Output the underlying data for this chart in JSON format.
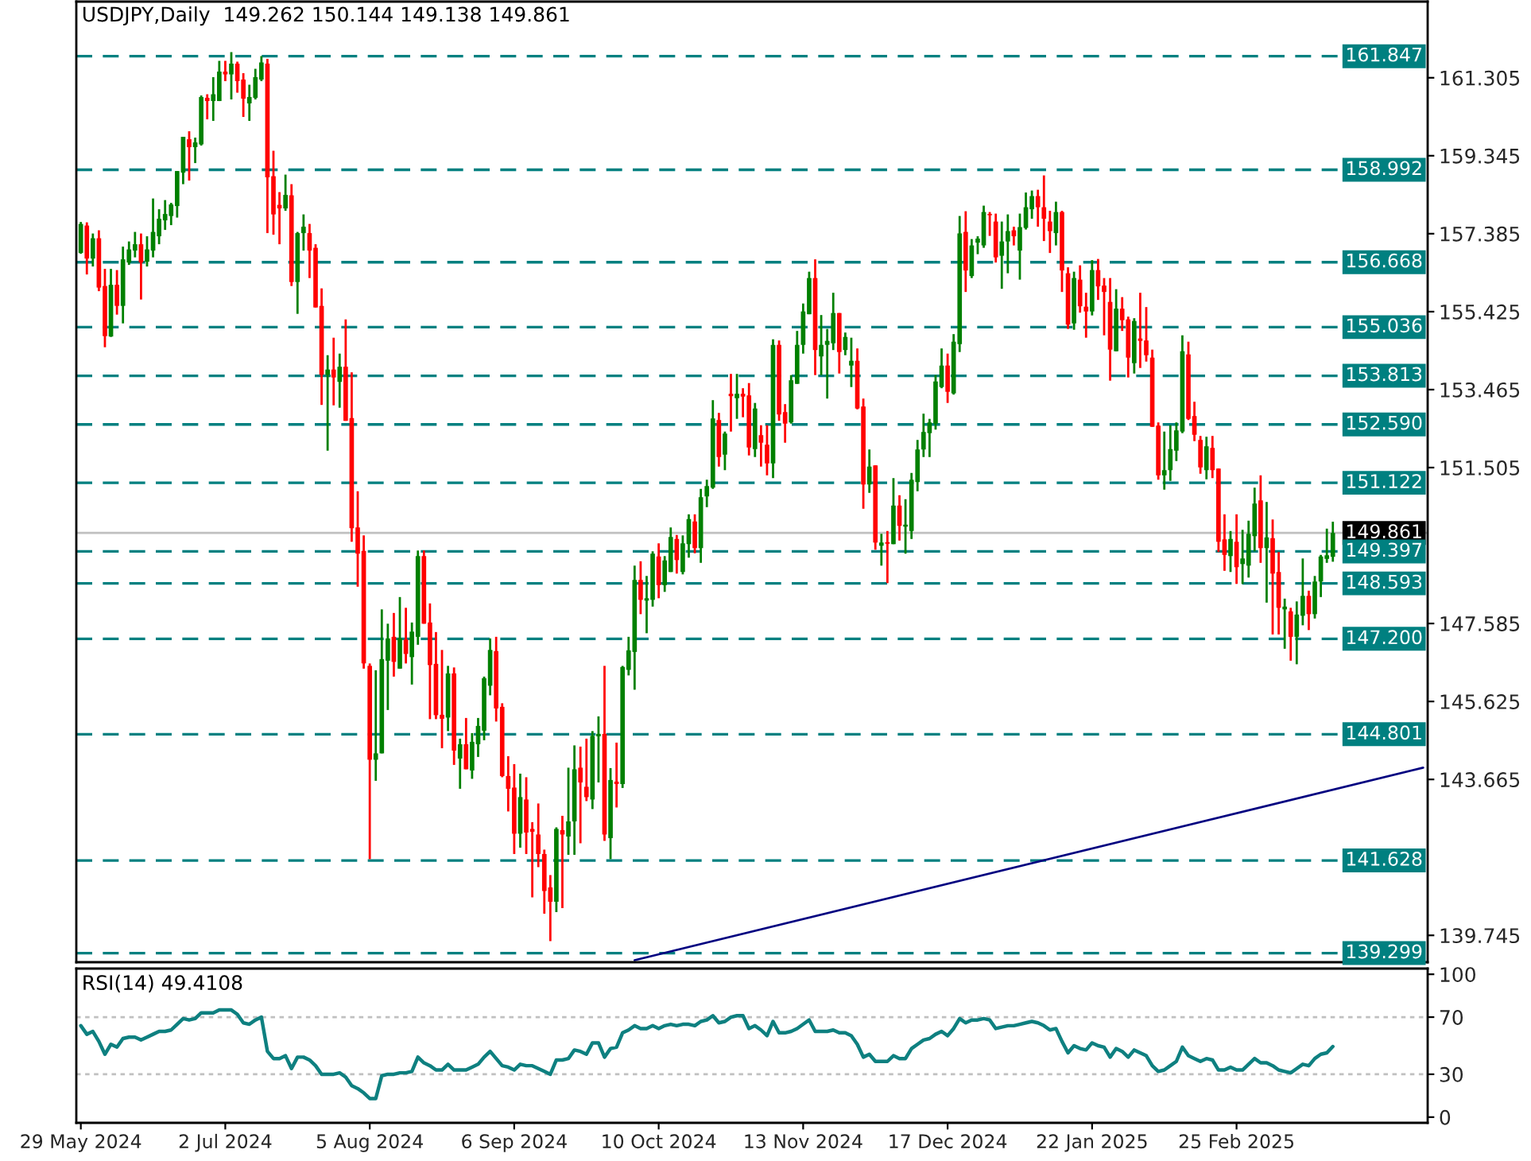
{
  "chart_data": [
    {
      "type": "candlestick",
      "title": "USDJPY,Daily  149.262 150.144 149.138 149.861",
      "categories": [
        null,
        null,
        null,
        null,
        null,
        null,
        null,
        null,
        null,
        null,
        null,
        null,
        null,
        null,
        null,
        null,
        null,
        null,
        null,
        null,
        null,
        null,
        null,
        null,
        null,
        null,
        null,
        null,
        null,
        null,
        null,
        null,
        null,
        null,
        null,
        null,
        null,
        null,
        null,
        null,
        null,
        null,
        null,
        null,
        null,
        null,
        null,
        null,
        null,
        null,
        null,
        null,
        null,
        null,
        null,
        null,
        null,
        null,
        null,
        null,
        null,
        null,
        null,
        null,
        null,
        null,
        null,
        null,
        null,
        null,
        null,
        null,
        null,
        null,
        null,
        null,
        null,
        null,
        null,
        null,
        null,
        null,
        null,
        null,
        null,
        null,
        null,
        null,
        null,
        null,
        null,
        null,
        null,
        null,
        null,
        null,
        null,
        null,
        null,
        null,
        null,
        null,
        null,
        null,
        null,
        null,
        null,
        null,
        null,
        null,
        null,
        null,
        null,
        null,
        null,
        null,
        null,
        null,
        null,
        null,
        null,
        null,
        null,
        null,
        null,
        null,
        null,
        null,
        null,
        null,
        null,
        null,
        null,
        null,
        null,
        null,
        null,
        null,
        null,
        null,
        null,
        null,
        null,
        null,
        null,
        null,
        null,
        null,
        null,
        null,
        null,
        null,
        null,
        null,
        null,
        null,
        null,
        null,
        null,
        null,
        null,
        null,
        null,
        null,
        null,
        null,
        null,
        null,
        null,
        null,
        null,
        null,
        null,
        null,
        null,
        null,
        null,
        null,
        null,
        null,
        null,
        null,
        null,
        null,
        null,
        null,
        null,
        null,
        null,
        null,
        null,
        null,
        null,
        null,
        null,
        null,
        null,
        null,
        null,
        null,
        null,
        null,
        null,
        null,
        null,
        null,
        null,
        null,
        null,
        null,
        null,
        null,
        null,
        null,
        null,
        null,
        null,
        null,
        null,
        null,
        null,
        null,
        null,
        null
      ],
      "ohlc": [
        [
          156.9,
          157.68,
          156.88,
          157.63
        ],
        [
          157.59,
          157.67,
          156.36,
          156.76
        ],
        [
          156.76,
          157.39,
          156.56,
          157.27
        ],
        [
          157.27,
          157.47,
          155.94,
          156.03
        ],
        [
          156.07,
          156.5,
          154.53,
          154.81
        ],
        [
          154.8,
          156.5,
          154.79,
          156.1
        ],
        [
          156.1,
          156.47,
          155.35,
          155.57
        ],
        [
          155.57,
          157.06,
          155.13,
          156.74
        ],
        [
          156.66,
          157.19,
          156.6,
          156.99
        ],
        [
          156.96,
          157.43,
          156.79,
          157.12
        ],
        [
          157.12,
          157.39,
          155.73,
          156.66
        ],
        [
          156.68,
          157.32,
          156.56,
          156.99
        ],
        [
          156.96,
          158.27,
          156.79,
          157.43
        ],
        [
          157.32,
          158.0,
          157.12,
          157.76
        ],
        [
          157.72,
          158.23,
          157.48,
          157.88
        ],
        [
          157.83,
          158.16,
          157.6,
          158.12
        ],
        [
          158.08,
          158.96,
          157.79,
          158.96
        ],
        [
          158.92,
          159.82,
          158.63,
          159.82
        ],
        [
          159.76,
          159.96,
          158.72,
          159.56
        ],
        [
          159.56,
          159.8,
          159.16,
          159.68
        ],
        [
          159.63,
          160.86,
          159.6,
          160.82
        ],
        [
          160.8,
          160.89,
          160.26,
          160.72
        ],
        [
          160.72,
          161.32,
          160.22,
          160.89
        ],
        [
          160.72,
          161.73,
          160.72,
          161.46
        ],
        [
          161.46,
          161.73,
          161.22,
          161.39
        ],
        [
          161.39,
          161.95,
          160.76,
          161.66
        ],
        [
          161.66,
          161.71,
          160.93,
          161.22
        ],
        [
          161.26,
          161.42,
          160.32,
          160.78
        ],
        [
          160.66,
          161.13,
          160.22,
          160.82
        ],
        [
          160.8,
          161.53,
          160.76,
          161.32
        ],
        [
          161.26,
          161.85,
          161.22,
          161.69
        ],
        [
          161.66,
          161.78,
          157.4,
          158.8
        ],
        [
          158.83,
          159.47,
          157.36,
          157.87
        ],
        [
          158.11,
          158.43,
          157.12,
          158.02
        ],
        [
          158.02,
          158.87,
          157.96,
          158.36
        ],
        [
          158.35,
          158.63,
          156.07,
          156.17
        ],
        [
          156.17,
          157.43,
          155.37,
          157.4
        ],
        [
          157.4,
          157.87,
          156.96,
          157.56
        ],
        [
          157.4,
          157.63,
          156.27,
          156.96
        ],
        [
          157.03,
          157.12,
          155.53,
          155.53
        ],
        [
          155.57,
          156.01,
          153.08,
          153.84
        ],
        [
          153.84,
          154.33,
          151.93,
          153.97
        ],
        [
          153.97,
          154.77,
          153.07,
          153.77
        ],
        [
          153.66,
          154.37,
          153.01,
          154.04
        ],
        [
          154.04,
          155.23,
          152.68,
          152.68
        ],
        [
          152.75,
          153.9,
          149.64,
          149.98
        ],
        [
          150.0,
          150.91,
          148.51,
          149.34
        ],
        [
          149.41,
          149.8,
          146.45,
          146.58
        ],
        [
          146.52,
          146.58,
          141.66,
          144.16
        ],
        [
          144.16,
          146.41,
          143.63,
          144.32
        ],
        [
          144.32,
          147.94,
          144.32,
          146.69
        ],
        [
          146.65,
          147.58,
          145.41,
          147.21
        ],
        [
          147.25,
          147.85,
          146.25,
          146.62
        ],
        [
          146.45,
          148.25,
          146.45,
          147.21
        ],
        [
          147.18,
          147.98,
          146.58,
          146.82
        ],
        [
          146.74,
          147.61,
          146.05,
          147.38
        ],
        [
          147.25,
          149.42,
          147.05,
          149.28
        ],
        [
          149.28,
          149.42,
          147.58,
          147.58
        ],
        [
          147.61,
          148.09,
          145.18,
          146.54
        ],
        [
          146.57,
          147.37,
          145.18,
          145.28
        ],
        [
          145.29,
          146.92,
          144.45,
          145.19
        ],
        [
          145.22,
          146.52,
          144.88,
          146.33
        ],
        [
          146.33,
          146.48,
          144.03,
          144.39
        ],
        [
          144.19,
          144.69,
          143.43,
          144.55
        ],
        [
          144.55,
          145.21,
          143.92,
          143.92
        ],
        [
          143.89,
          144.83,
          143.68,
          144.61
        ],
        [
          144.55,
          145.21,
          144.23,
          145.01
        ],
        [
          144.89,
          146.25,
          144.65,
          146.21
        ],
        [
          146.02,
          147.21,
          145.78,
          146.92
        ],
        [
          146.89,
          147.25,
          145.12,
          145.45
        ],
        [
          145.49,
          145.58,
          143.72,
          143.75
        ],
        [
          143.75,
          144.25,
          142.86,
          143.43
        ],
        [
          143.46,
          144.05,
          141.79,
          142.3
        ],
        [
          142.3,
          143.81,
          141.95,
          143.22
        ],
        [
          143.16,
          143.72,
          141.79,
          142.33
        ],
        [
          142.42,
          142.59,
          140.7,
          142.35
        ],
        [
          142.28,
          143.06,
          141.46,
          141.79
        ],
        [
          141.79,
          141.9,
          140.29,
          140.86
        ],
        [
          140.95,
          141.26,
          139.6,
          140.59
        ],
        [
          140.59,
          142.46,
          140.33,
          142.42
        ],
        [
          142.39,
          142.75,
          140.43,
          142.28
        ],
        [
          142.23,
          143.96,
          141.77,
          142.61
        ],
        [
          142.61,
          144.52,
          141.77,
          143.92
        ],
        [
          143.96,
          144.49,
          142.06,
          143.59
        ],
        [
          143.48,
          144.69,
          143.12,
          143.22
        ],
        [
          143.16,
          144.88,
          142.92,
          144.76
        ],
        [
          144.75,
          145.25,
          143.59,
          144.81
        ],
        [
          144.81,
          146.52,
          142.12,
          142.28
        ],
        [
          142.19,
          143.95,
          141.66,
          143.65
        ],
        [
          143.61,
          144.59,
          142.96,
          143.55
        ],
        [
          143.55,
          146.52,
          143.45,
          146.49
        ],
        [
          146.42,
          147.25,
          146.28,
          146.91
        ],
        [
          146.87,
          149.04,
          145.92,
          148.68
        ],
        [
          148.68,
          149.15,
          147.82,
          148.18
        ],
        [
          148.16,
          148.78,
          147.34,
          148.22
        ],
        [
          148.18,
          149.4,
          148.01,
          149.34
        ],
        [
          149.27,
          149.6,
          148.22,
          148.55
        ],
        [
          148.55,
          149.28,
          148.38,
          149.17
        ],
        [
          148.88,
          150.0,
          148.88,
          149.76
        ],
        [
          149.71,
          149.81,
          148.84,
          149.18
        ],
        [
          148.88,
          149.8,
          148.82,
          149.6
        ],
        [
          149.58,
          150.33,
          149.24,
          150.21
        ],
        [
          150.15,
          150.33,
          149.35,
          149.48
        ],
        [
          149.48,
          150.97,
          149.11,
          150.76
        ],
        [
          150.78,
          151.2,
          150.51,
          151.04
        ],
        [
          151.0,
          153.2,
          150.97,
          152.74
        ],
        [
          152.7,
          152.88,
          151.53,
          151.77
        ],
        [
          151.83,
          152.41,
          151.44,
          152.36
        ],
        [
          153.36,
          153.86,
          152.41,
          153.3
        ],
        [
          153.25,
          153.86,
          152.73,
          153.36
        ],
        [
          153.36,
          153.5,
          152.77,
          153.29
        ],
        [
          153.32,
          153.63,
          151.81,
          152.01
        ],
        [
          151.97,
          153.13,
          151.77,
          152.99
        ],
        [
          152.32,
          152.57,
          151.53,
          152.13
        ],
        [
          152.08,
          152.57,
          151.31,
          151.61
        ],
        [
          151.61,
          154.73,
          151.24,
          154.59
        ],
        [
          154.59,
          154.7,
          152.68,
          152.84
        ],
        [
          152.9,
          153.1,
          152.13,
          152.61
        ],
        [
          152.64,
          153.83,
          152.61,
          153.7
        ],
        [
          153.61,
          154.94,
          153.61,
          154.59
        ],
        [
          154.59,
          155.63,
          154.37,
          155.43
        ],
        [
          155.36,
          156.43,
          155.36,
          156.27
        ],
        [
          156.27,
          156.74,
          153.83,
          154.46
        ],
        [
          154.3,
          155.34,
          153.83,
          154.59
        ],
        [
          154.59,
          154.99,
          153.24,
          154.69
        ],
        [
          154.63,
          155.9,
          154.46,
          155.39
        ],
        [
          155.39,
          155.39,
          153.87,
          154.41
        ],
        [
          154.46,
          154.9,
          154.33,
          154.79
        ],
        [
          154.07,
          154.77,
          153.53,
          154.19
        ],
        [
          154.19,
          154.5,
          152.97,
          152.99
        ],
        [
          153.04,
          153.24,
          150.47,
          151.08
        ],
        [
          151.08,
          151.96,
          150.87,
          151.53
        ],
        [
          151.56,
          151.56,
          149.44,
          149.62
        ],
        [
          149.54,
          149.84,
          149.04,
          149.62
        ],
        [
          149.63,
          149.91,
          148.6,
          149.59
        ],
        [
          149.58,
          151.24,
          149.58,
          150.55
        ],
        [
          150.55,
          150.81,
          149.67,
          150.04
        ],
        [
          150.02,
          150.71,
          149.34,
          150.07
        ],
        [
          149.91,
          151.37,
          149.71,
          151.2
        ],
        [
          151.14,
          152.2,
          150.91,
          151.96
        ],
        [
          151.96,
          152.86,
          151.77,
          152.4
        ],
        [
          152.37,
          152.73,
          151.77,
          152.64
        ],
        [
          152.61,
          153.83,
          152.46,
          153.67
        ],
        [
          153.53,
          154.5,
          153.5,
          154.07
        ],
        [
          154.07,
          154.37,
          153.13,
          153.41
        ],
        [
          153.37,
          154.86,
          153.34,
          154.67
        ],
        [
          154.61,
          157.83,
          154.41,
          157.39
        ],
        [
          157.43,
          157.95,
          155.92,
          156.46
        ],
        [
          156.32,
          157.25,
          156.27,
          157.09
        ],
        [
          157.16,
          157.32,
          156.87,
          157.26
        ],
        [
          157.09,
          158.09,
          157.03,
          157.93
        ],
        [
          157.88,
          157.93,
          157.33,
          157.85
        ],
        [
          157.69,
          157.89,
          156.66,
          156.79
        ],
        [
          156.83,
          157.69,
          156.0,
          157.19
        ],
        [
          157.19,
          157.87,
          156.39,
          157.45
        ],
        [
          157.47,
          157.56,
          157.09,
          157.32
        ],
        [
          156.96,
          157.89,
          156.23,
          157.55
        ],
        [
          157.53,
          158.42,
          157.49,
          158.05
        ],
        [
          158.0,
          158.47,
          157.76,
          158.33
        ],
        [
          158.33,
          158.49,
          157.56,
          158.05
        ],
        [
          158.05,
          158.85,
          157.2,
          157.76
        ],
        [
          157.69,
          157.96,
          156.9,
          157.45
        ],
        [
          157.4,
          158.19,
          157.09,
          157.93
        ],
        [
          157.93,
          157.96,
          155.92,
          156.46
        ],
        [
          156.39,
          156.54,
          154.99,
          155.1
        ],
        [
          155.13,
          156.43,
          154.97,
          156.27
        ],
        [
          156.23,
          156.59,
          155.4,
          155.56
        ],
        [
          155.55,
          155.9,
          154.77,
          155.43
        ],
        [
          155.43,
          156.72,
          155.33,
          156.47
        ],
        [
          156.47,
          156.75,
          155.72,
          156.06
        ],
        [
          156.08,
          156.27,
          154.83,
          155.92
        ],
        [
          155.67,
          156.27,
          153.69,
          154.47
        ],
        [
          154.43,
          155.99,
          154.43,
          155.5
        ],
        [
          155.5,
          155.79,
          154.94,
          155.21
        ],
        [
          155.23,
          155.3,
          153.77,
          154.27
        ],
        [
          154.13,
          155.26,
          153.87,
          155.19
        ],
        [
          154.75,
          155.9,
          154.01,
          154.69
        ],
        [
          154.7,
          155.54,
          154.17,
          154.33
        ],
        [
          154.27,
          154.47,
          152.53,
          152.53
        ],
        [
          152.56,
          152.64,
          151.2,
          151.31
        ],
        [
          151.31,
          152.41,
          150.95,
          151.44
        ],
        [
          151.44,
          152.57,
          151.17,
          151.97
        ],
        [
          151.93,
          152.64,
          151.67,
          152.44
        ],
        [
          152.41,
          154.83,
          152.37,
          154.43
        ],
        [
          154.35,
          154.67,
          152.7,
          152.73
        ],
        [
          152.8,
          153.16,
          152.17,
          152.33
        ],
        [
          152.2,
          152.3,
          151.35,
          151.51
        ],
        [
          151.44,
          152.28,
          151.21,
          152.04
        ],
        [
          152.0,
          152.3,
          151.24,
          151.44
        ],
        [
          151.48,
          151.48,
          149.38,
          149.64
        ],
        [
          149.7,
          150.33,
          148.91,
          149.31
        ],
        [
          149.28,
          149.91,
          148.88,
          149.71
        ],
        [
          149.64,
          150.33,
          148.58,
          149.0
        ],
        [
          149.08,
          149.94,
          148.58,
          149.22
        ],
        [
          149.04,
          150.17,
          148.74,
          149.84
        ],
        [
          149.78,
          151.0,
          149.4,
          150.6
        ],
        [
          150.68,
          151.31,
          149.11,
          149.48
        ],
        [
          149.48,
          150.64,
          148.11,
          149.75
        ],
        [
          149.73,
          150.2,
          147.31,
          148.84
        ],
        [
          148.88,
          149.38,
          147.31,
          147.98
        ],
        [
          147.94,
          148.21,
          146.95,
          148.01
        ],
        [
          147.89,
          147.98,
          146.65,
          147.25
        ],
        [
          147.25,
          148.14,
          146.56,
          147.81
        ],
        [
          147.78,
          149.22,
          147.54,
          148.28
        ],
        [
          148.28,
          148.41,
          147.42,
          147.82
        ],
        [
          147.82,
          148.78,
          147.71,
          148.64
        ],
        [
          148.64,
          149.31,
          148.25,
          149.27
        ],
        [
          149.21,
          149.97,
          149.11,
          149.3
        ],
        [
          149.262,
          150.144,
          149.138,
          149.861
        ],
        null,
        null,
        null,
        null,
        null,
        null,
        null,
        null,
        null,
        null,
        null,
        null,
        null,
        null,
        null
      ],
      "series": [
        {
          "type": "line",
          "color": "#000080",
          "values": [
            null,
            null,
            null,
            null,
            null,
            null,
            null,
            null,
            null,
            null,
            null,
            null,
            null,
            null,
            null,
            null,
            null,
            null,
            null,
            null,
            null,
            null,
            null,
            null,
            null,
            null,
            null,
            null,
            null,
            null,
            null,
            null,
            null,
            null,
            null,
            null,
            null,
            null,
            null,
            null,
            null,
            null,
            null,
            null,
            null,
            null,
            null,
            null,
            null,
            null,
            null,
            null,
            null,
            null,
            null,
            null,
            null,
            null,
            null,
            null,
            null,
            null,
            null,
            null,
            null,
            null,
            null,
            null,
            null,
            null,
            null,
            null,
            null,
            null,
            null,
            null,
            null,
            null,
            null,
            null,
            null,
            null,
            null,
            null,
            null,
            null,
            null,
            null,
            null,
            null,
            null,
            null,
            139.12,
            null,
            null,
            null,
            null,
            null,
            null,
            null,
            null,
            null,
            null,
            null,
            null,
            null,
            null,
            null,
            null,
            null,
            null,
            null,
            null,
            null,
            null,
            null,
            null,
            null,
            null,
            null,
            null,
            null,
            null,
            null,
            null,
            null,
            null,
            null,
            null,
            null,
            null,
            null,
            null,
            null,
            null,
            null,
            null,
            null,
            null,
            null,
            null,
            null,
            null,
            null,
            null,
            null,
            null,
            null,
            null,
            null,
            null,
            null,
            null,
            null,
            null,
            null,
            null,
            null,
            null,
            null,
            null,
            null,
            null,
            null,
            null,
            null,
            null,
            null,
            null,
            null,
            null,
            null,
            null,
            null,
            null,
            null,
            null,
            null,
            null,
            null,
            null,
            null,
            null,
            null,
            null,
            null,
            null,
            null,
            null,
            null,
            null,
            null,
            null,
            null,
            null,
            null,
            null,
            null,
            null,
            null,
            null,
            null,
            null,
            null,
            null,
            null,
            null,
            null,
            null,
            null,
            null,
            null,
            null,
            null,
            null,
            null,
            null,
            null,
            null,
            null,
            null,
            null,
            null,
            143.96
          ]
        }
      ],
      "ylim": [
        139.07,
        163.22
      ],
      "yticks": [
        139.745,
        143.665,
        145.625,
        147.585,
        151.505,
        153.465,
        155.425,
        157.385,
        159.345,
        161.305
      ],
      "ref_lines": [
        {
          "axis": "y",
          "value": 161.847,
          "label": "161.847",
          "color": "#008080",
          "line_style": "dashed"
        },
        {
          "axis": "y",
          "value": 158.992,
          "label": "158.992",
          "color": "#008080",
          "line_style": "dashed"
        },
        {
          "axis": "y",
          "value": 156.668,
          "label": "156.668",
          "color": "#008080",
          "line_style": "dashed"
        },
        {
          "axis": "y",
          "value": 155.036,
          "label": "155.036",
          "color": "#008080",
          "line_style": "dashed"
        },
        {
          "axis": "y",
          "value": 153.813,
          "label": "153.813",
          "color": "#008080",
          "line_style": "dashed"
        },
        {
          "axis": "y",
          "value": 152.59,
          "label": "152.590",
          "color": "#008080",
          "line_style": "dashed"
        },
        {
          "axis": "y",
          "value": 151.122,
          "label": "151.122",
          "color": "#008080",
          "line_style": "dashed"
        },
        {
          "axis": "y",
          "value": 149.861,
          "label": "149.861",
          "color": "#c0c0c0",
          "line_style": "solid"
        },
        {
          "axis": "y",
          "value": 149.397,
          "label": "149.397",
          "color": "#008080",
          "line_style": "dashed"
        },
        {
          "axis": "y",
          "value": 148.593,
          "label": "148.593",
          "color": "#008080",
          "line_style": "dashed"
        },
        {
          "axis": "y",
          "value": 147.2,
          "label": "147.200",
          "color": "#008080",
          "line_style": "dashed"
        },
        {
          "axis": "y",
          "value": 144.801,
          "label": "144.801",
          "color": "#008080",
          "line_style": "dashed"
        },
        {
          "axis": "y",
          "value": 141.628,
          "label": "141.628",
          "color": "#008080",
          "line_style": "dashed"
        },
        {
          "axis": "y",
          "value": 139.299,
          "label": "139.299",
          "color": "#008080",
          "line_style": "dashed"
        }
      ],
      "grid": false,
      "legend": false,
      "tick_labels": "y"
    },
    {
      "type": "line",
      "title": "RSI(14) 49.4108",
      "categories": [
        "29 May 2024",
        null,
        null,
        null,
        null,
        null,
        null,
        null,
        null,
        null,
        null,
        null,
        null,
        null,
        null,
        null,
        null,
        null,
        null,
        null,
        null,
        null,
        null,
        null,
        "2 Jul 2024",
        null,
        null,
        null,
        null,
        null,
        null,
        null,
        null,
        null,
        null,
        null,
        null,
        null,
        null,
        null,
        null,
        null,
        null,
        null,
        null,
        null,
        null,
        null,
        "5 Aug 2024",
        null,
        null,
        null,
        null,
        null,
        null,
        null,
        null,
        null,
        null,
        null,
        null,
        null,
        null,
        null,
        null,
        null,
        null,
        null,
        null,
        null,
        null,
        null,
        "6 Sep 2024",
        null,
        null,
        null,
        null,
        null,
        null,
        null,
        null,
        null,
        null,
        null,
        null,
        null,
        null,
        null,
        null,
        null,
        null,
        null,
        null,
        null,
        null,
        null,
        "10 Oct 2024",
        null,
        null,
        null,
        null,
        null,
        null,
        null,
        null,
        null,
        null,
        null,
        null,
        null,
        null,
        null,
        null,
        null,
        null,
        null,
        null,
        null,
        null,
        null,
        "13 Nov 2024",
        null,
        null,
        null,
        null,
        null,
        null,
        null,
        null,
        null,
        null,
        null,
        null,
        null,
        null,
        null,
        null,
        null,
        null,
        null,
        null,
        null,
        null,
        null,
        "17 Dec 2024",
        null,
        null,
        null,
        null,
        null,
        null,
        null,
        null,
        null,
        null,
        null,
        null,
        null,
        null,
        null,
        null,
        null,
        null,
        null,
        null,
        null,
        null,
        null,
        "22 Jan 2025",
        null,
        null,
        null,
        null,
        null,
        null,
        null,
        null,
        null,
        null,
        null,
        null,
        null,
        null,
        null,
        null,
        null,
        null,
        null,
        null,
        null,
        null,
        null,
        "25 Feb 2025",
        null,
        null,
        null,
        null,
        null,
        null,
        null,
        null,
        null,
        null,
        null,
        null,
        null,
        null,
        null,
        null,
        null,
        null,
        null,
        null,
        null,
        null,
        null,
        null,
        null,
        null,
        null,
        null,
        null,
        null,
        null
      ],
      "series": [
        {
          "color": "#0e8080",
          "values": [
            64,
            58,
            60,
            53,
            44,
            51,
            49,
            55,
            56,
            56,
            54,
            56,
            58,
            60,
            60,
            61,
            65,
            69,
            68,
            69,
            73,
            73,
            73,
            75,
            75,
            75,
            72,
            66,
            65,
            68,
            70,
            46,
            41,
            41,
            43,
            34,
            42,
            42,
            40,
            36,
            30,
            30,
            30,
            31,
            28,
            22,
            20,
            17,
            13,
            13,
            29,
            30,
            30,
            31,
            31,
            32,
            42,
            38,
            36,
            33,
            33,
            37,
            33,
            33,
            33,
            35,
            37,
            42,
            46,
            41,
            36,
            35,
            33,
            37,
            36,
            36,
            34,
            32,
            30,
            40,
            40,
            41,
            47,
            46,
            44,
            52,
            52,
            42,
            48,
            49,
            59,
            61,
            64,
            62,
            62,
            64,
            62,
            64,
            65,
            64,
            65,
            65,
            64,
            67,
            68,
            71,
            66,
            67,
            70,
            71,
            71,
            62,
            64,
            61,
            57,
            67,
            59,
            59,
            60,
            62,
            65,
            68,
            60,
            60,
            60,
            61,
            59,
            59,
            57,
            51,
            42,
            44,
            39,
            39,
            39,
            43,
            41,
            41,
            48,
            51,
            54,
            55,
            58,
            60,
            57,
            62,
            69,
            66,
            68,
            68,
            69,
            68,
            62,
            63,
            64,
            64,
            65,
            66,
            67,
            66,
            64,
            61,
            62,
            53,
            45,
            50,
            48,
            47,
            52,
            50,
            49,
            42,
            48,
            46,
            42,
            47,
            45,
            43,
            36,
            32,
            33,
            36,
            39,
            49,
            43,
            41,
            39,
            41,
            40,
            33,
            33,
            35,
            33,
            33,
            37,
            41,
            38,
            38,
            36,
            33,
            32,
            31,
            34,
            37,
            36,
            41,
            44,
            45,
            49.4108,
            null,
            null,
            null,
            null,
            null,
            null,
            null,
            null,
            null,
            null,
            null,
            null,
            null,
            null,
            null
          ]
        }
      ],
      "ylim": [
        -4,
        104
      ],
      "yticks": [
        0,
        30,
        70,
        100
      ],
      "ref_lines": [
        {
          "axis": "y",
          "value": 70,
          "color": "#c0c0c0",
          "line_style": "dotted"
        },
        {
          "axis": "y",
          "value": 30,
          "color": "#c0c0c0",
          "line_style": "dotted"
        }
      ],
      "grid": false,
      "legend": false
    }
  ]
}
